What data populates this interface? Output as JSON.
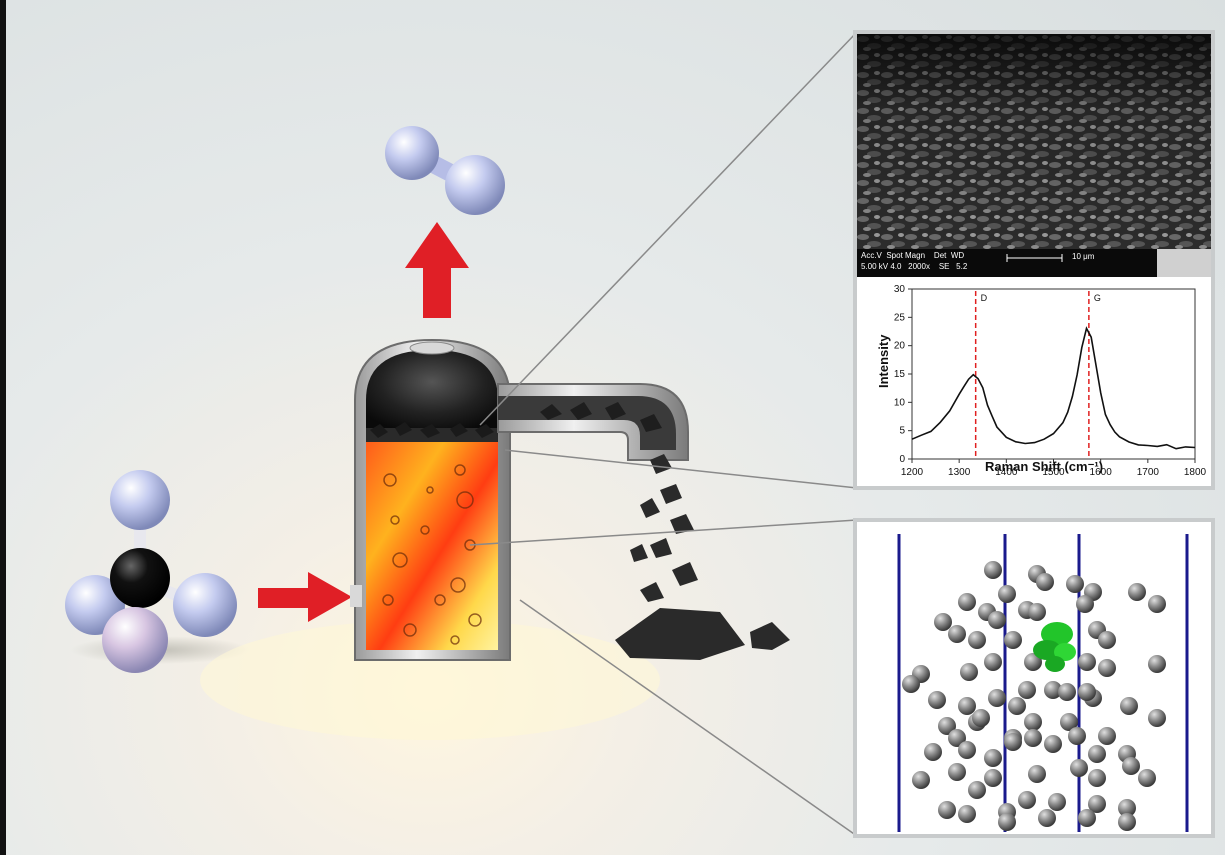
{
  "sem": {
    "label_line1": "Acc.V  Spot Magn    Det  WD",
    "label_line2": "5.00 kV 4.0   2000x    SE   5.2",
    "scale_text": "10 μm"
  },
  "raman": {
    "peak_d": "D",
    "peak_g": "G",
    "ylabel": "Intensity",
    "xlabel": "Raman Shift (cm⁻¹)",
    "xticks": [
      "1200",
      "1300",
      "1400",
      "1500",
      "1600",
      "1700",
      "1800"
    ],
    "yticks": [
      "0",
      "5",
      "10",
      "15",
      "20",
      "25",
      "30"
    ]
  },
  "chart_data": {
    "type": "line",
    "xlabel": "Raman Shift (cm⁻¹)",
    "ylabel": "Intensity",
    "xlim": [
      1200,
      1800
    ],
    "ylim": [
      0,
      30
    ],
    "annotations": [
      {
        "text": "D",
        "x": 1335
      },
      {
        "text": "G",
        "x": 1575
      }
    ],
    "series": [
      {
        "x": [
          1200,
          1220,
          1240,
          1260,
          1280,
          1300,
          1310,
          1320,
          1330,
          1340,
          1350,
          1360,
          1370,
          1380,
          1400,
          1420,
          1440,
          1460,
          1480,
          1500,
          1520,
          1530,
          1540,
          1550,
          1560,
          1570,
          1580,
          1590,
          1600,
          1610,
          1620,
          1630,
          1640,
          1660,
          1680,
          1700,
          1720,
          1740,
          1760,
          1780,
          1800
        ],
        "values": [
          3.5,
          4,
          4.5,
          6,
          8,
          11,
          12.5,
          14,
          15,
          14.5,
          13,
          10,
          8,
          6,
          4,
          3,
          2.5,
          2.5,
          3,
          4,
          6,
          8,
          11,
          15,
          20,
          23.5,
          22,
          17,
          12,
          8,
          6,
          4.5,
          3.5,
          2.5,
          2,
          2,
          2,
          2.5,
          2,
          2.5,
          2.5
        ]
      }
    ]
  },
  "colors": {
    "arrow_red": "#e01f26",
    "peak_line": "#e02020",
    "md_line": "#1a1a8c",
    "md_cluster": "#22c52a",
    "molecule_atom": "#b8c0ec",
    "carbon_atom": "#111111"
  }
}
